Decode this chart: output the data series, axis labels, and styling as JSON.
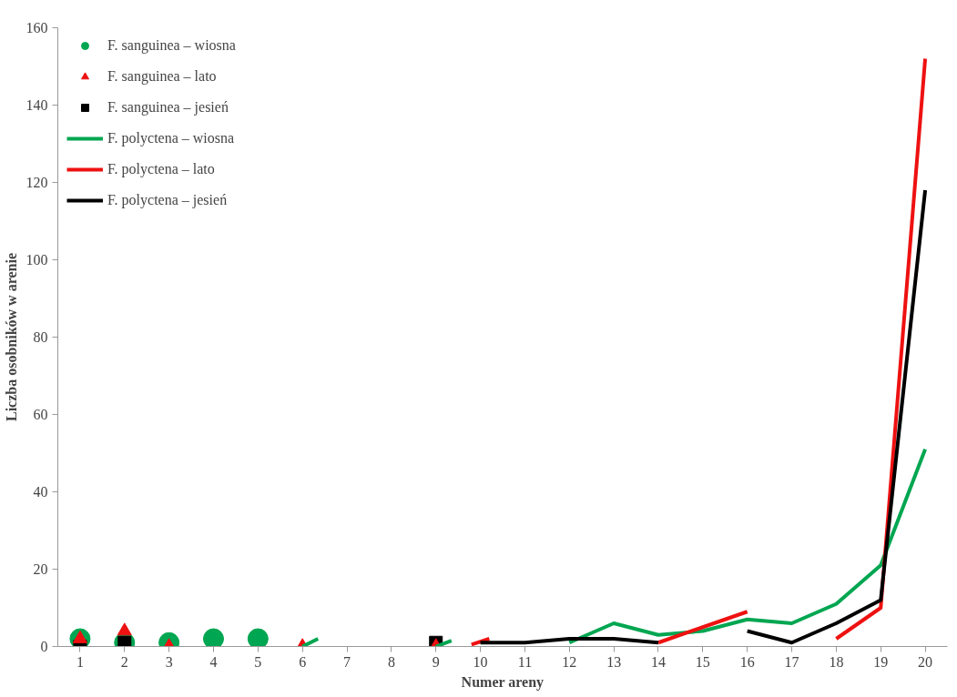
{
  "chart_data": {
    "type": "line",
    "xlabel": "Numer areny",
    "ylabel": "Liczba osobników w arenie",
    "xlim": [
      0.5,
      20.5
    ],
    "xticks": [
      1,
      2,
      3,
      4,
      5,
      6,
      7,
      8,
      9,
      10,
      11,
      12,
      13,
      14,
      15,
      16,
      17,
      18,
      19,
      20
    ],
    "ylim": [
      0,
      160
    ],
    "yticks": [
      0,
      20,
      40,
      60,
      80,
      100,
      120,
      140,
      160
    ],
    "grid": false,
    "legend": "top left",
    "series": [
      {
        "name": "F. sanguinea – wiosna",
        "type": "scatter",
        "marker": "circle",
        "color": "#00a651",
        "x": [
          1,
          2,
          3,
          4,
          5
        ],
        "values": [
          2,
          1,
          1,
          2,
          2
        ]
      },
      {
        "name": "F. sanguinea – lato",
        "type": "scatter",
        "marker": "triangle",
        "color": "#ee1111",
        "x": [
          1,
          2,
          3,
          6,
          9
        ],
        "values": [
          2,
          4,
          0,
          0,
          0
        ]
      },
      {
        "name": "F. sanguinea – jesień",
        "type": "scatter",
        "marker": "square",
        "color": "#000000",
        "x": [
          1,
          2,
          9
        ],
        "values": [
          0,
          1,
          1
        ]
      },
      {
        "name": "F. polyctena – wiosna",
        "color": "#00a651",
        "x": [
          6,
          6.35,
          null,
          9,
          9.35,
          null,
          12,
          13,
          14,
          15,
          16,
          17,
          18,
          19,
          20
        ],
        "values": [
          0,
          2,
          null,
          0,
          1.5,
          null,
          1,
          6,
          3,
          4,
          7,
          6,
          11,
          21,
          51
        ]
      },
      {
        "name": "F. polyctena – lato",
        "color": "#ee1111",
        "x": [
          9.8,
          10.2,
          null,
          14,
          15,
          16,
          null,
          18,
          19,
          20
        ],
        "values": [
          0.5,
          2,
          null,
          1,
          5,
          9,
          null,
          2,
          10,
          152
        ]
      },
      {
        "name": "F. polyctena – jesień",
        "color": "#000000",
        "x": [
          10,
          11,
          12,
          13,
          14,
          null,
          16,
          17,
          18,
          19,
          20
        ],
        "values": [
          1,
          1,
          2,
          2,
          1,
          null,
          4,
          1,
          6,
          12,
          118
        ]
      }
    ]
  }
}
